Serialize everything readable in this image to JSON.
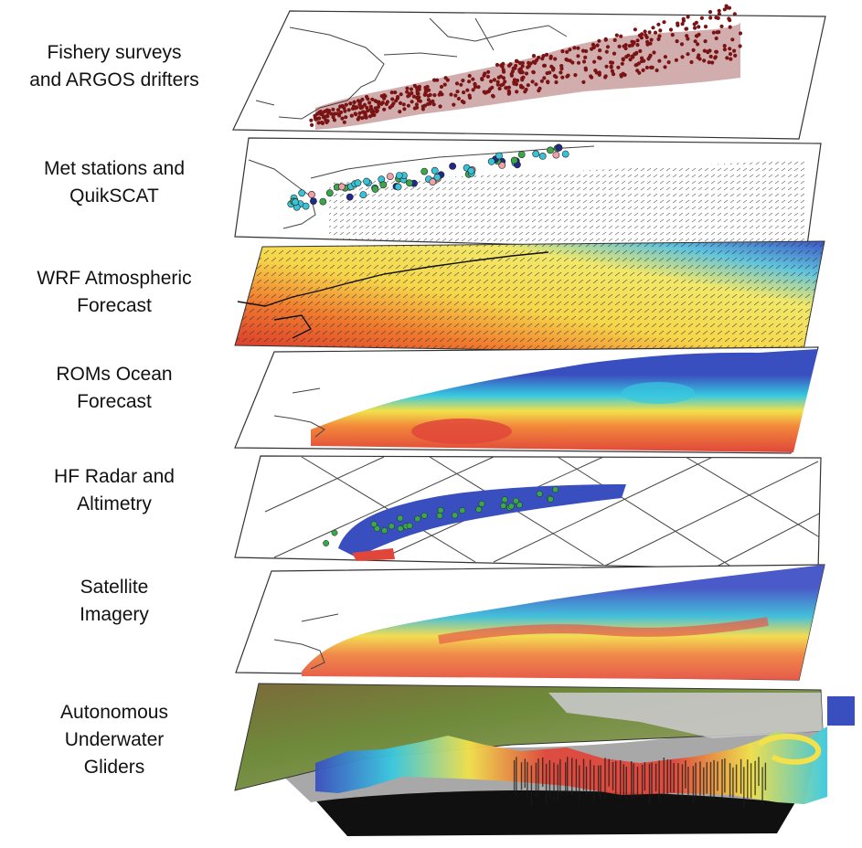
{
  "layers": [
    {
      "id": "fishery",
      "lines": [
        "Fishery surveys",
        "and ARGOS drifters"
      ]
    },
    {
      "id": "met",
      "lines": [
        "Met stations and",
        "QuikSCAT"
      ]
    },
    {
      "id": "wrf",
      "lines": [
        "WRF Atmospheric",
        "Forecast"
      ]
    },
    {
      "id": "roms",
      "lines": [
        "ROMs Ocean",
        "Forecast"
      ]
    },
    {
      "id": "hf",
      "lines": [
        "HF Radar and",
        "Altimetry"
      ]
    },
    {
      "id": "satellite",
      "lines": [
        "Satellite",
        "Imagery"
      ]
    },
    {
      "id": "gliders",
      "lines": [
        "Autonomous",
        "Underwater",
        "Gliders"
      ]
    }
  ],
  "colors": {
    "frame": "#333333",
    "land_line": "#444444",
    "drifter": "#7a1414",
    "station_cyan": "#39c3d6",
    "station_green": "#3aa84a",
    "station_navy": "#1f2a8a",
    "station_pink": "#f0a0a8",
    "ocean_blue": "#3a4fbf",
    "ocean_cyan": "#38c8e0",
    "ocean_yellow": "#f2e14a",
    "ocean_red": "#e0473a",
    "land_green": "#6e8a3a",
    "terrain_gray": "#a8a8a8",
    "deep_black": "#101010"
  }
}
